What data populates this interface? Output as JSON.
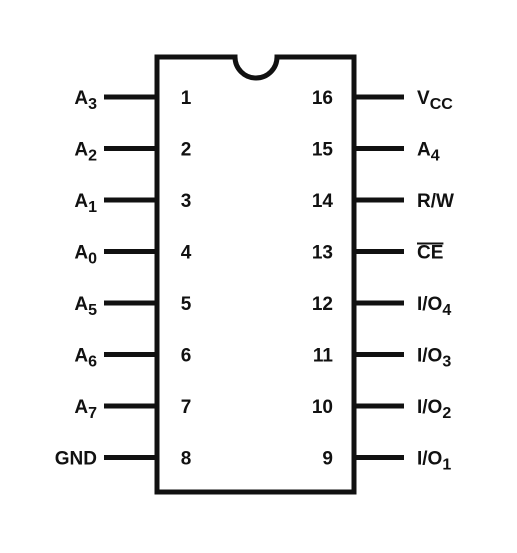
{
  "ink_color": "#111111",
  "background": "#ffffff",
  "left_pins": [
    {
      "number": "1",
      "name": "A",
      "sub": "3",
      "overline": false
    },
    {
      "number": "2",
      "name": "A",
      "sub": "2",
      "overline": false
    },
    {
      "number": "3",
      "name": "A",
      "sub": "1",
      "overline": false
    },
    {
      "number": "4",
      "name": "A",
      "sub": "0",
      "overline": false
    },
    {
      "number": "5",
      "name": "A",
      "sub": "5",
      "overline": false
    },
    {
      "number": "6",
      "name": "A",
      "sub": "6",
      "overline": false
    },
    {
      "number": "7",
      "name": "A",
      "sub": "7",
      "overline": false
    },
    {
      "number": "8",
      "name": "GND",
      "sub": "",
      "overline": false
    }
  ],
  "right_pins": [
    {
      "number": "16",
      "name": "V",
      "sub": "CC",
      "overline": false
    },
    {
      "number": "15",
      "name": "A",
      "sub": "4",
      "overline": false
    },
    {
      "number": "14",
      "name": "R/W",
      "sub": "",
      "overline": false
    },
    {
      "number": "13",
      "name": "CE",
      "sub": "",
      "overline": true
    },
    {
      "number": "12",
      "name": "I/O",
      "sub": "4",
      "overline": false
    },
    {
      "number": "11",
      "name": "I/O",
      "sub": "3",
      "overline": false
    },
    {
      "number": "10",
      "name": "I/O",
      "sub": "2",
      "overline": false
    },
    {
      "number": "9",
      "name": "I/O",
      "sub": "1",
      "overline": false
    }
  ]
}
